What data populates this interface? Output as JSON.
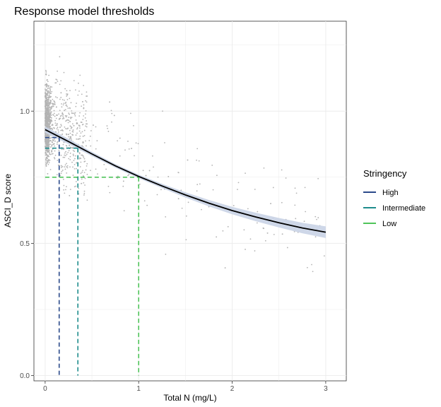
{
  "chart_data": {
    "type": "scatter",
    "title": "Response model thresholds",
    "xlabel": "Total N (mg/L)",
    "ylabel": "ASCI_D score",
    "xlim": [
      -0.12,
      3.22
    ],
    "ylim": [
      -0.02,
      1.34
    ],
    "x_ticks": [
      0,
      1,
      2,
      3
    ],
    "y_ticks": [
      0.0,
      0.5,
      1.0
    ],
    "x_tick_labels": [
      "0",
      "1",
      "2",
      "3"
    ],
    "y_tick_labels": [
      "0.0",
      "0.5",
      "1.0"
    ],
    "grid": true,
    "theme": "bw",
    "legend": {
      "title": "Stringency",
      "position": "right",
      "entries": [
        {
          "label": "High",
          "color": "#2b4a8a"
        },
        {
          "label": "Intermediate",
          "color": "#1e8c8c"
        },
        {
          "label": "Low",
          "color": "#4fc45a"
        }
      ]
    },
    "model_curve": {
      "color": "#000000",
      "band_color": "#c9d3e6",
      "x": [
        0,
        0.25,
        0.5,
        0.75,
        1.0,
        1.25,
        1.5,
        1.75,
        2.0,
        2.25,
        2.5,
        2.75,
        3.0
      ],
      "y": [
        0.93,
        0.885,
        0.838,
        0.793,
        0.753,
        0.717,
        0.683,
        0.652,
        0.624,
        0.6,
        0.578,
        0.558,
        0.542
      ],
      "band_half_width": [
        0.012,
        0.01,
        0.008,
        0.007,
        0.007,
        0.008,
        0.01,
        0.012,
        0.014,
        0.016,
        0.018,
        0.02,
        0.022
      ]
    },
    "thresholds": [
      {
        "stringency": "High",
        "x": 0.15,
        "y": 0.9
      },
      {
        "stringency": "Intermediate",
        "x": 0.35,
        "y": 0.86
      },
      {
        "stringency": "Low",
        "x": 1.0,
        "y": 0.75
      }
    ],
    "points": {
      "color": "#b3b3b3",
      "n": 1500,
      "seed": 17,
      "note_x_range": [
        0,
        3
      ],
      "note_y_range": [
        0.3,
        1.27
      ]
    }
  }
}
